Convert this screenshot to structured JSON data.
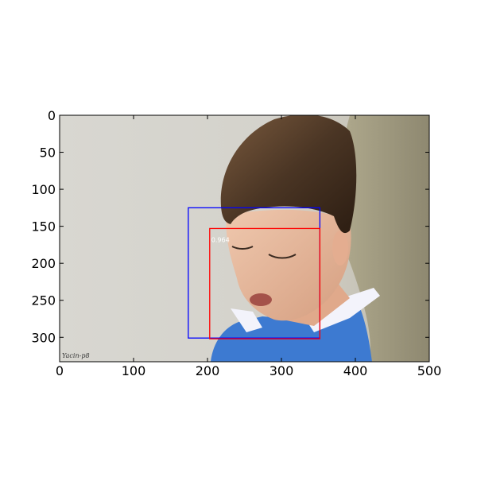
{
  "chart_data": {
    "type": "image",
    "title": "",
    "xlabel": "",
    "ylabel": "",
    "xlim": [
      0,
      500
    ],
    "ylim": [
      333,
      0
    ],
    "x_ticks": [
      0,
      100,
      200,
      300,
      400,
      500
    ],
    "y_ticks": [
      0,
      50,
      100,
      150,
      200,
      250,
      300
    ],
    "grid": false,
    "boxes": [
      {
        "name": "ground-truth-box",
        "x1": 174,
        "y1": 125,
        "x2": 352,
        "y2": 301,
        "color": "#0000ff"
      },
      {
        "name": "detection-box",
        "x1": 203,
        "y1": 153,
        "x2": 352,
        "y2": 302,
        "color": "#ff0000",
        "score": "0.964"
      }
    ],
    "signature": "Yacin-p8"
  },
  "colors": {
    "axis": "#000000",
    "background_light": "#d6d4ce",
    "hair": "#4a3524",
    "skin": "#e6b497",
    "shirt": "#3d7ad1",
    "collar": "#f3f3fb",
    "shoulder": "#9a9478"
  }
}
